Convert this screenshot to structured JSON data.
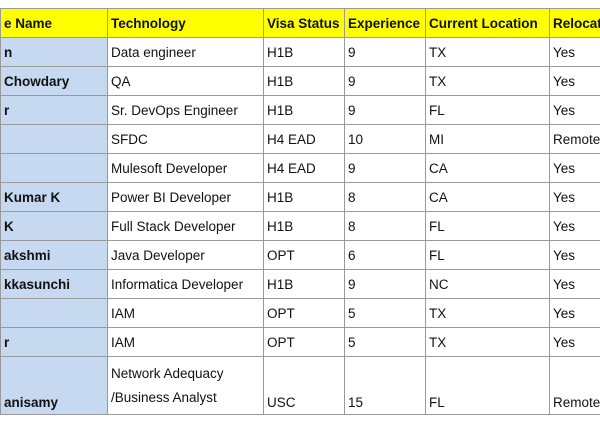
{
  "table": {
    "header": [
      "e Name",
      "Technology",
      "Visa Status",
      "Experience",
      "Current Location",
      "Relocat"
    ],
    "rows": [
      [
        "n",
        "Data engineer",
        "H1B",
        9,
        "TX",
        "Yes"
      ],
      [
        "Chowdary",
        "QA",
        "H1B",
        9,
        "TX",
        "Yes"
      ],
      [
        "r",
        "Sr. DevOps Engineer",
        "H1B",
        9,
        "FL",
        "Yes"
      ],
      [
        null,
        "SFDC",
        "H4 EAD",
        10,
        "MI",
        "Remote"
      ],
      [
        null,
        "Mulesoft Developer",
        "H4 EAD",
        9,
        "CA",
        "Yes"
      ],
      [
        "Kumar K",
        "Power BI Developer",
        "H1B",
        8,
        "CA",
        "Yes"
      ],
      [
        "K",
        "Full Stack Developer",
        "H1B",
        8,
        "FL",
        "Yes"
      ],
      [
        "akshmi",
        "Java Developer",
        "OPT",
        6,
        "FL",
        "Yes"
      ],
      [
        "kkasunchi",
        "Informatica Developer",
        "H1B",
        9,
        "NC",
        "Yes"
      ],
      [
        null,
        "IAM",
        "OPT",
        5,
        "TX",
        "Yes"
      ],
      [
        "r",
        "IAM",
        "OPT",
        5,
        "TX",
        "Yes"
      ],
      [
        "anisamy",
        [
          "Network Adequacy",
          "/Business Analyst"
        ],
        "USC",
        15,
        "FL",
        "Remote"
      ]
    ]
  }
}
